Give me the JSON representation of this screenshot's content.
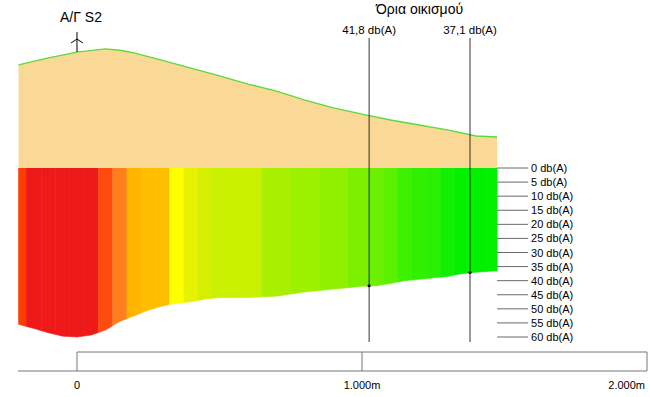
{
  "chart_data": [
    {
      "type": "area",
      "x": [
        -205,
        -100,
        0,
        100,
        150,
        200,
        300,
        400,
        500,
        600,
        700,
        800,
        900,
        1000,
        1100,
        1200,
        1300,
        1400,
        1474
      ],
      "values": [
        80.5,
        86,
        90.6,
        93,
        92,
        90,
        84,
        78,
        72,
        65.6,
        60,
        53,
        47,
        42,
        37.5,
        33.6,
        29.7,
        25,
        24.2
      ],
      "color": "#f9d995",
      "xlim": [
        -207,
        2000
      ],
      "ylim": [
        0,
        100
      ],
      "tick_labels": false,
      "annotations": [
        {
          "x": 0,
          "text": "Α/Γ S2"
        }
      ]
    },
    {
      "type": "area",
      "x": [
        -205,
        -150,
        -100,
        -50,
        0,
        50,
        100,
        150,
        200,
        250,
        300,
        350,
        400,
        450,
        500,
        600,
        700,
        800,
        900,
        1000,
        1050,
        1100,
        1150,
        1200,
        1250,
        1300,
        1350,
        1400,
        1474
      ],
      "values": [
        55.5,
        57,
        58.5,
        59.7,
        60,
        59.3,
        57.5,
        54.5,
        52.5,
        50.5,
        49,
        48,
        47.5,
        46.5,
        46,
        46,
        45.5,
        44,
        43,
        42,
        41.8,
        41,
        40,
        39.5,
        39,
        38.5,
        37.5,
        37,
        36.5
      ],
      "colors": [
        "#ff3c00",
        "#ee1a1a",
        "#ee1a1a",
        "#ee1a1a",
        "#ee1a1a",
        "#ee1a1a",
        "#ff4a10",
        "#ff7f1e",
        "#ffb400",
        "#ffbf00",
        "#ffbf00",
        "#ffff00",
        "#e6f200",
        "#d4f000",
        "#c8f000",
        "#c8f000",
        "#a8f000",
        "#9cf000",
        "#90f000",
        "#7cf000",
        "#6af000",
        "#5af000",
        "#3cf000",
        "#30f000",
        "#28f000",
        "#10f000",
        "#00f000",
        "#00f000",
        "#00f000"
      ],
      "xlim": [
        -207,
        2000
      ],
      "ylim": [
        0,
        60
      ],
      "yticks": [
        {
          "value": 0,
          "label": "0 db(A)"
        },
        {
          "value": 5,
          "label": "5 db(A)"
        },
        {
          "value": 10,
          "label": "10 db(A)"
        },
        {
          "value": 15,
          "label": "15 db(A)"
        },
        {
          "value": 20,
          "label": "20 db(A)"
        },
        {
          "value": 25,
          "label": "25 db(A)"
        },
        {
          "value": 30,
          "label": "30 db(A)"
        },
        {
          "value": 35,
          "label": "35 db(A)"
        },
        {
          "value": 40,
          "label": "40 db(A)"
        },
        {
          "value": 45,
          "label": "45 db(A)"
        },
        {
          "value": 50,
          "label": "50 db(A)"
        },
        {
          "value": 55,
          "label": "55 db(A)"
        },
        {
          "value": 60,
          "label": "60 db(A)"
        }
      ],
      "xticks": [
        0,
        {
          "value": 1000,
          "label": "1.000m"
        },
        {
          "value": 2000,
          "label": "2.000m"
        }
      ],
      "annotations": [
        {
          "text": "Όρια οικισμού"
        },
        {
          "x": 1025,
          "value": 41.8,
          "text": "41,8 db(A)"
        },
        {
          "x": 1379,
          "value": 37.1,
          "text": "37,1 db(A)"
        }
      ]
    }
  ]
}
